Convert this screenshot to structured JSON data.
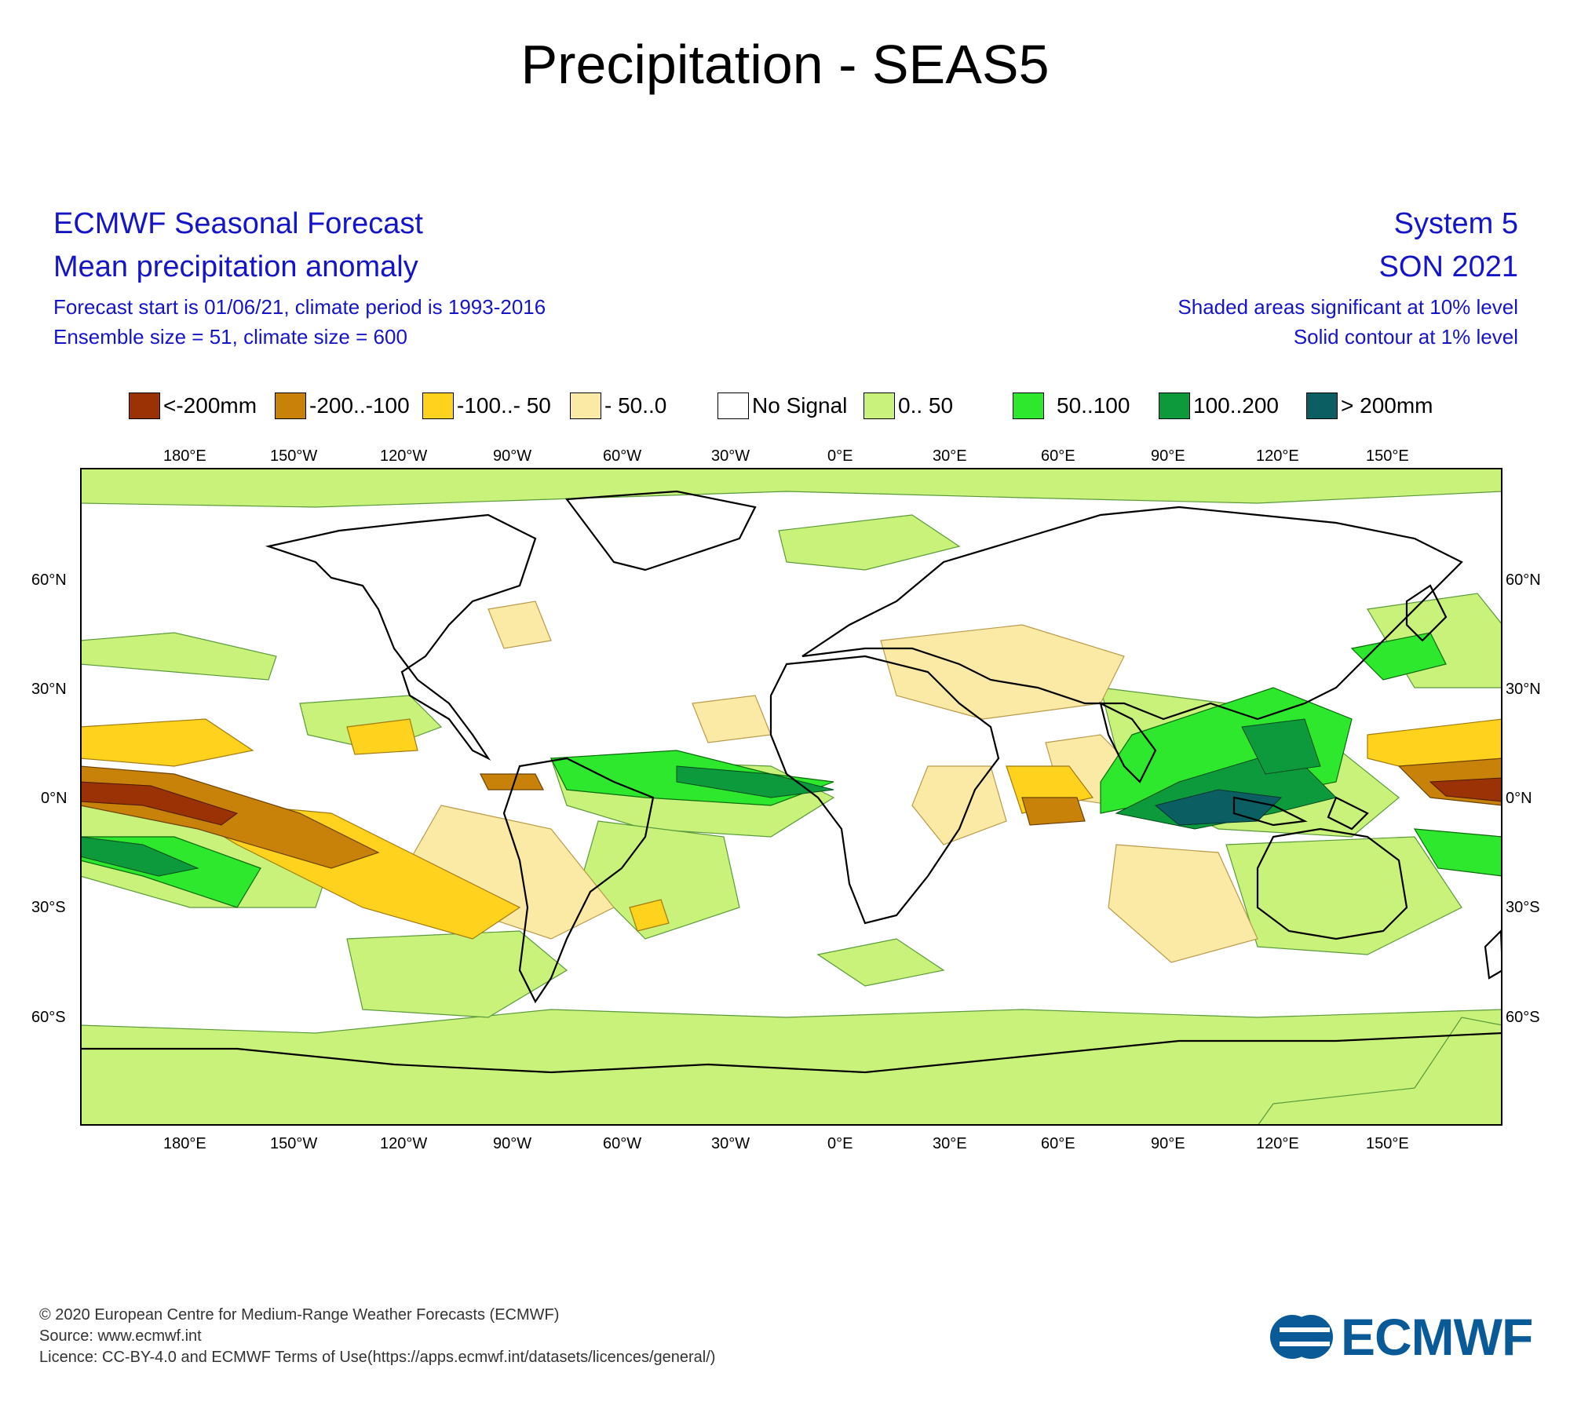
{
  "title": "Precipitation - SEAS5",
  "header_left": {
    "line1": "ECMWF Seasonal Forecast",
    "line2": "Mean precipitation anomaly",
    "line3": "Forecast start is 01/06/21, climate period is 1993-2016",
    "line4": "Ensemble size = 51, climate size = 600"
  },
  "header_right": {
    "line1": "System 5",
    "line2": "SON 2021",
    "line3": "Shaded areas significant at 10% level",
    "line4": "Solid contour at 1% level"
  },
  "legend": [
    {
      "label": "<-200mm",
      "color": "#9a3205"
    },
    {
      "label": "-200..-100",
      "color": "#c8820a"
    },
    {
      "label": "-100..- 50",
      "color": "#ffd21e"
    },
    {
      "label": "- 50..0",
      "color": "#fbe9a6"
    },
    {
      "label": "No Signal",
      "color": "#ffffff"
    },
    {
      "label": "0.. 50",
      "color": "#c9f27b"
    },
    {
      "label": "50..100",
      "color": "#2de82d"
    },
    {
      "label": "100..200",
      "color": "#0c9a3c"
    },
    {
      "label": "> 200mm",
      "color": "#0b5f63"
    }
  ],
  "axes": {
    "lon_labels": [
      "180°E",
      "150°W",
      "120°W",
      "90°W",
      "60°W",
      "30°W",
      "0°E",
      "30°E",
      "60°E",
      "90°E",
      "120°E",
      "150°E"
    ],
    "lat_labels": [
      "60°N",
      "30°N",
      "0°N",
      "30°S",
      "60°S"
    ]
  },
  "map_features": {
    "land": "coastline outlines",
    "anomaly_regions": [
      {
        "name": "central Pacific equatorial dry",
        "class": "<-200mm"
      },
      {
        "name": "eastern Indian Ocean wet",
        "class": "> 200mm"
      },
      {
        "name": "western Pacific wet",
        "class": "100..200"
      },
      {
        "name": "equatorial Atlantic wet",
        "class": "100..200"
      },
      {
        "name": "western Indian Ocean dry",
        "class": "-200..-100"
      },
      {
        "name": "subtropical South Pacific dry",
        "class": "-100..- 50"
      }
    ]
  },
  "footer": {
    "line1": "© 2020 European Centre for Medium-Range Weather Forecasts (ECMWF)",
    "line2": "Source: www.ecmwf.int",
    "line3": "Licence: CC-BY-4.0 and ECMWF Terms of Use(https://apps.ecmwf.int/datasets/licences/general/)"
  },
  "logo": {
    "text": "ECMWF",
    "color": "#0a5a98"
  }
}
